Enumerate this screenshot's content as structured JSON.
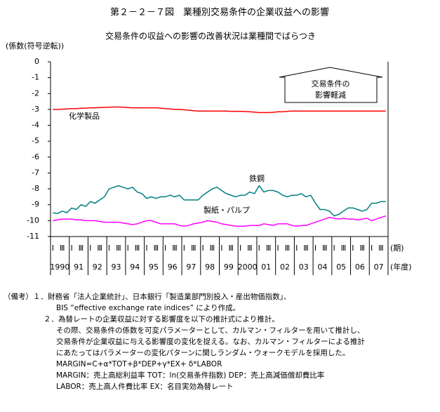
{
  "chart_data": {
    "type": "line",
    "title": "第２－２－７図　業種別交易条件の企業収益への影響",
    "subtitle": "交易条件の収益への影響の改善状況は業種間でばらつき",
    "y_label": "(係数(符号逆転))",
    "x_unit_label": "(期)",
    "year_unit_label": "(年度)",
    "categories": [
      "Ⅰ",
      null,
      "Ⅲ",
      null,
      "Ⅰ",
      null,
      "Ⅲ",
      null,
      "Ⅰ",
      null,
      "Ⅲ",
      null,
      "Ⅰ",
      null,
      "Ⅲ",
      null,
      "Ⅰ",
      null,
      "Ⅲ",
      null,
      "Ⅰ",
      null,
      "Ⅲ",
      null,
      "Ⅰ",
      null,
      "Ⅲ",
      null,
      "Ⅰ",
      null,
      "Ⅲ",
      null,
      "Ⅰ",
      null,
      "Ⅲ",
      null,
      "Ⅰ",
      null,
      "Ⅲ",
      null,
      "Ⅰ",
      null,
      "Ⅲ",
      null,
      "Ⅰ",
      null,
      "Ⅲ",
      null,
      "Ⅰ",
      null,
      "Ⅲ",
      null,
      "Ⅰ",
      null,
      "Ⅲ",
      null,
      "Ⅰ",
      null,
      "Ⅲ",
      null,
      "Ⅰ",
      null,
      "Ⅲ",
      null,
      "Ⅰ",
      null,
      "Ⅲ",
      null,
      "Ⅰ",
      null,
      "Ⅲ",
      null
    ],
    "year_labels": [
      "1990",
      "91",
      "92",
      "93",
      "94",
      "95",
      "96",
      "97",
      "98",
      "99",
      "2000",
      "01",
      "02",
      "03",
      "04",
      "05",
      "06",
      "07"
    ],
    "series": [
      {
        "name": "化学製品",
        "color": "#ff0000",
        "values": [
          -3.0,
          -3.0,
          -2.98,
          -2.97,
          -2.95,
          -2.95,
          -2.93,
          -2.92,
          -2.9,
          -2.9,
          -2.88,
          -2.87,
          -2.86,
          -2.85,
          -2.85,
          -2.86,
          -2.88,
          -2.9,
          -2.9,
          -2.9,
          -2.9,
          -2.9,
          -2.9,
          -2.92,
          -2.95,
          -2.97,
          -3.0,
          -3.0,
          -3.02,
          -3.05,
          -3.08,
          -3.1,
          -3.1,
          -3.1,
          -3.1,
          -3.1,
          -3.1,
          -3.1,
          -3.12,
          -3.12,
          -3.12,
          -3.13,
          -3.15,
          -3.17,
          -3.2,
          -3.2,
          -3.2,
          -3.18,
          -3.15,
          -3.15,
          -3.12,
          -3.1,
          -3.1,
          -3.1,
          -3.1,
          -3.1,
          -3.1,
          -3.1,
          -3.1,
          -3.1,
          -3.1,
          -3.1,
          -3.1,
          -3.1,
          -3.1,
          -3.1,
          -3.1,
          -3.1,
          -3.1,
          -3.1,
          -3.1,
          -3.1
        ]
      },
      {
        "name": "鉄鋼",
        "color": "#008080",
        "values": [
          -9.5,
          -9.55,
          -9.4,
          -9.5,
          -9.2,
          -9.3,
          -9.0,
          -9.1,
          -8.8,
          -8.9,
          -8.7,
          -8.5,
          -8.0,
          -7.9,
          -7.8,
          -7.9,
          -8.0,
          -7.9,
          -8.2,
          -8.3,
          -8.6,
          -8.5,
          -8.6,
          -8.5,
          -8.5,
          -8.4,
          -8.5,
          -8.4,
          -8.7,
          -8.7,
          -8.7,
          -8.7,
          -8.4,
          -8.2,
          -8.0,
          -7.9,
          -8.1,
          -8.3,
          -8.4,
          -8.5,
          -8.4,
          -8.4,
          -8.2,
          -8.3,
          -7.8,
          -8.2,
          -8.1,
          -8.1,
          -8.2,
          -8.4,
          -8.5,
          -8.4,
          -8.4,
          -8.3,
          -8.5,
          -8.4,
          -8.9,
          -9.3,
          -9.3,
          -9.4,
          -9.7,
          -9.6,
          -9.4,
          -9.2,
          -9.2,
          -9.3,
          -9.4,
          -9.3,
          -8.9,
          -8.9,
          -8.8,
          -8.8
        ]
      },
      {
        "name": "製紙・パルプ",
        "color": "#ff00ff",
        "values": [
          -10.0,
          -9.95,
          -9.9,
          -9.9,
          -9.9,
          -9.95,
          -9.95,
          -10.0,
          -10.0,
          -10.0,
          -10.05,
          -10.1,
          -10.1,
          -10.1,
          -10.1,
          -10.15,
          -10.2,
          -10.25,
          -10.2,
          -10.1,
          -10.0,
          -10.0,
          -10.1,
          -10.2,
          -10.2,
          -10.2,
          -10.2,
          -10.3,
          -10.35,
          -10.3,
          -10.2,
          -10.15,
          -10.1,
          -10.0,
          -10.05,
          -10.1,
          -10.2,
          -10.25,
          -10.3,
          -10.35,
          -10.35,
          -10.35,
          -10.3,
          -10.3,
          -10.3,
          -10.2,
          -10.25,
          -10.3,
          -10.2,
          -10.2,
          -10.2,
          -10.3,
          -10.35,
          -10.3,
          -10.3,
          -10.2,
          -10.1,
          -10.0,
          -9.9,
          -9.8,
          -9.85,
          -9.9,
          -9.85,
          -9.9,
          -9.9,
          -9.95,
          -9.9,
          -9.85,
          -10.0,
          -9.9,
          -9.8,
          -9.7
        ]
      }
    ],
    "arrow_label": [
      "交易条件の",
      "影響軽減"
    ],
    "ylim": [
      -11,
      0
    ],
    "yticks": [
      0,
      -1,
      -2,
      -3,
      -4,
      -5,
      -6,
      -7,
      -8,
      -9,
      -10,
      -11
    ]
  },
  "notes": [
    "（備考）１．財務省「法人企業統計」、日本銀行「製造業部門別投入・産出物価指数」、",
    "BIS “effective exchange rate indices” により作成。",
    "２．為替レートの企業収益に対する影響度を以下の推計式により推計。",
    "その際、交易条件の係数を可変パラメーターとして、カルマン・フィルターを用いて推計し、",
    "交易条件が企業収益に与える影響度の変化を捉える。なお、カルマン・フィルターによる推計",
    "にあたってはパラメーターの変化パターンに関しランダム・ウォークモデルを採用した。",
    "MARGIN=C+α*TOT+β*DEP+γ*EX+ δ*LABOR",
    "MARGIN：売上高総利益率 TOT：ln(交易条件指数) DEP：売上高減価償却費比率",
    "LABOR：売上高人件費比率 EX：名目実効為替レート"
  ]
}
